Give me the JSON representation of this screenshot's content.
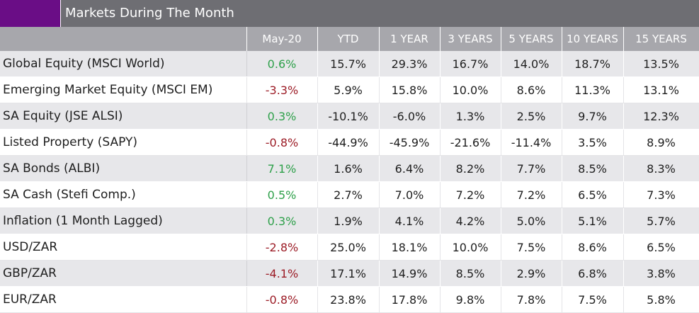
{
  "header": {
    "title": "Markets During The Month"
  },
  "table": {
    "columns": [
      "May-20",
      "YTD",
      "1 YEAR",
      "3 YEARS",
      "5 YEARS",
      "10 YEARS",
      "15 YEARS"
    ],
    "rows": [
      {
        "label": "Global Equity (MSCI World)",
        "values": [
          "0.6%",
          "15.7%",
          "29.3%",
          "16.7%",
          "14.0%",
          "18.7%",
          "13.5%"
        ],
        "month_sign": "pos"
      },
      {
        "label": "Emerging Market Equity (MSCI EM)",
        "values": [
          "-3.3%",
          "5.9%",
          "15.8%",
          "10.0%",
          "8.6%",
          "11.3%",
          "13.1%"
        ],
        "month_sign": "neg"
      },
      {
        "label": "SA Equity (JSE ALSI)",
        "values": [
          "0.3%",
          "-10.1%",
          "-6.0%",
          "1.3%",
          "2.5%",
          "9.7%",
          "12.3%"
        ],
        "month_sign": "pos"
      },
      {
        "label": "Listed Property (SAPY)",
        "values": [
          "-0.8%",
          "-44.9%",
          "-45.9%",
          "-21.6%",
          "-11.4%",
          "3.5%",
          "8.9%"
        ],
        "month_sign": "neg"
      },
      {
        "label": "SA Bonds (ALBI)",
        "values": [
          "7.1%",
          "1.6%",
          "6.4%",
          "8.2%",
          "7.7%",
          "8.5%",
          "8.3%"
        ],
        "month_sign": "pos"
      },
      {
        "label": "SA Cash (Stefi Comp.)",
        "values": [
          "0.5%",
          "2.7%",
          "7.0%",
          "7.2%",
          "7.2%",
          "6.5%",
          "7.3%"
        ],
        "month_sign": "pos"
      },
      {
        "label": "Inflation (1 Month Lagged)",
        "values": [
          "0.3%",
          "1.9%",
          "4.1%",
          "4.2%",
          "5.0%",
          "5.1%",
          "5.7%"
        ],
        "month_sign": "pos"
      },
      {
        "label": "USD/ZAR",
        "values": [
          "-2.8%",
          "25.0%",
          "18.1%",
          "10.0%",
          "7.5%",
          "8.6%",
          "6.5%"
        ],
        "month_sign": "neg"
      },
      {
        "label": "GBP/ZAR",
        "values": [
          "-4.1%",
          "17.1%",
          "14.9%",
          "8.5%",
          "2.9%",
          "6.8%",
          "3.8%"
        ],
        "month_sign": "neg"
      },
      {
        "label": "EUR/ZAR",
        "values": [
          "-0.8%",
          "23.8%",
          "17.8%",
          "9.8%",
          "7.8%",
          "7.5%",
          "5.8%"
        ],
        "month_sign": "neg"
      }
    ]
  },
  "colors": {
    "accent": "#6a0d86",
    "title_bg": "#6e6e73",
    "header_bg": "#a7a7ac",
    "positive": "#2ea04a",
    "negative": "#9c1c26"
  }
}
